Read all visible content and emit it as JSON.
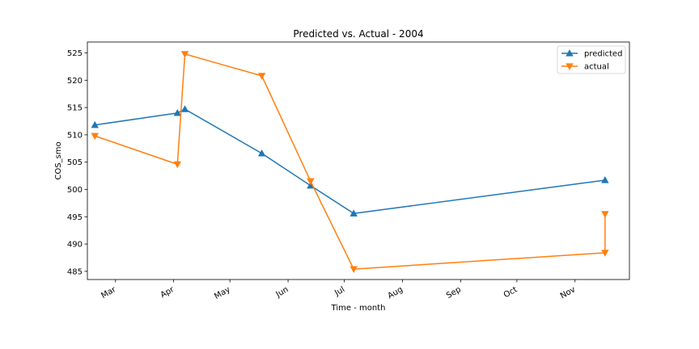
{
  "chart_data": {
    "type": "line",
    "title": "Predicted vs. Actual - 2004",
    "xlabel": "Time - month",
    "ylabel": "COS_smo",
    "x_axis": {
      "tick_labels": [
        "Mar",
        "Apr",
        "May",
        "Jun",
        "Jul",
        "Aug",
        "Sep",
        "Oct",
        "Nov"
      ],
      "tick_dates": [
        "2004-03-01",
        "2004-04-01",
        "2004-05-01",
        "2004-06-01",
        "2004-07-01",
        "2004-08-01",
        "2004-09-01",
        "2004-10-01",
        "2004-11-01"
      ],
      "xlim": [
        "2004-02-15",
        "2004-11-30"
      ]
    },
    "ylim": [
      483.5,
      527
    ],
    "yticks": [
      485,
      490,
      495,
      500,
      505,
      510,
      515,
      520,
      525
    ],
    "grid": false,
    "legend_position": "top-right",
    "series": [
      {
        "name": "predicted",
        "color": "#1f77b4",
        "marker": "triangle-up",
        "points": [
          {
            "x": "2004-02-19",
            "y": 511.8
          },
          {
            "x": "2004-04-03",
            "y": 514.0
          },
          {
            "x": "2004-04-07",
            "y": 514.7
          },
          {
            "x": "2004-05-18",
            "y": 506.6
          },
          {
            "x": "2004-06-13",
            "y": 500.7
          },
          {
            "x": "2004-07-06",
            "y": 495.6
          },
          {
            "x": "2004-11-17",
            "y": 501.7
          }
        ]
      },
      {
        "name": "actual",
        "color": "#ff7f0e",
        "marker": "triangle-down",
        "points": [
          {
            "x": "2004-02-19",
            "y": 509.8
          },
          {
            "x": "2004-04-03",
            "y": 504.6
          },
          {
            "x": "2004-04-07",
            "y": 524.8
          },
          {
            "x": "2004-05-18",
            "y": 520.8
          },
          {
            "x": "2004-06-13",
            "y": 501.5
          },
          {
            "x": "2004-07-06",
            "y": 485.4
          },
          {
            "x": "2004-11-17",
            "y": 488.4
          },
          {
            "x": "2004-11-17",
            "y": 495.5
          }
        ]
      }
    ]
  }
}
